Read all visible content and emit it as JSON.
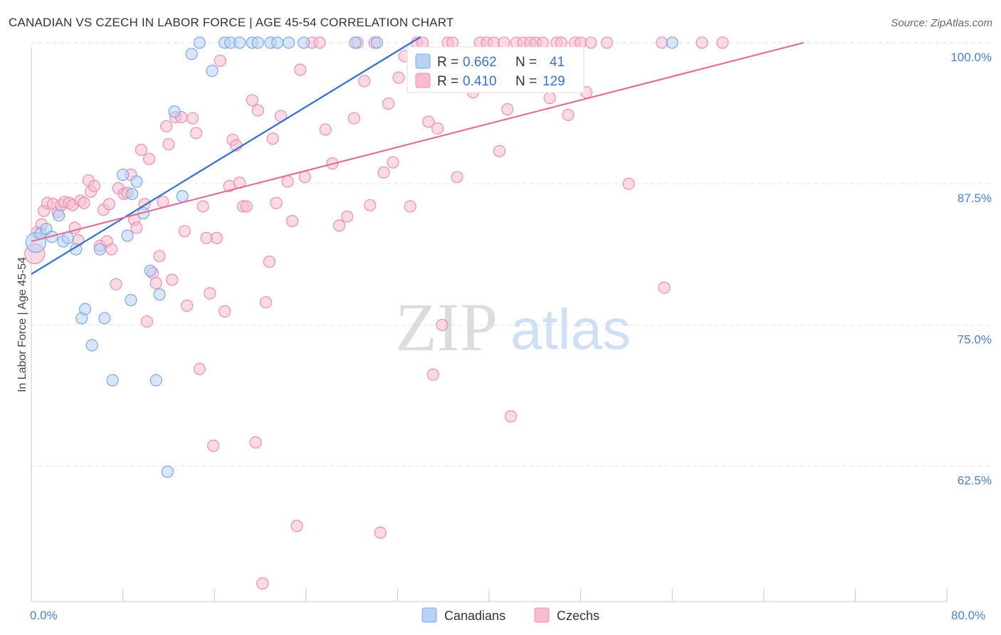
{
  "title": "CANADIAN VS CZECH IN LABOR FORCE | AGE 45-54 CORRELATION CHART",
  "source": "Source: ZipAtlas.com",
  "watermark": {
    "zip": "ZIP",
    "atlas": "atlas"
  },
  "colors": {
    "canadians_fill": "#b7d2f5",
    "canadians_stroke": "#7aa8e6",
    "canadians_line": "#2f6fd0",
    "czechs_fill": "#f7bcd0",
    "czechs_stroke": "#ec8fb0",
    "czechs_line": "#e07099",
    "value_text": "#3a72cc"
  },
  "legend": {
    "rows": [
      {
        "r_label": "R =",
        "r_value": "0.662",
        "n_label": "N =",
        "n_value": "41"
      },
      {
        "r_label": "R =",
        "r_value": "0.410",
        "n_label": "N =",
        "n_value": "129"
      }
    ]
  },
  "bottom_legend": [
    "Canadians",
    "Czechs"
  ],
  "chart_data": {
    "type": "scatter",
    "xlabel": "",
    "ylabel": "In Labor Force | Age 45-54",
    "xlim": [
      0,
      80
    ],
    "ylim": [
      50.5,
      100.5
    ],
    "x_tick_labels": [
      "0.0%",
      "80.0%"
    ],
    "y_ticks": [
      62.5,
      75.0,
      87.5,
      100.0
    ],
    "y_tick_labels": [
      "62.5%",
      "75.0%",
      "87.5%",
      "100.0%"
    ],
    "grid": true,
    "series": [
      {
        "name": "Canadians",
        "r": 0.662,
        "n": 41,
        "trend": {
          "x0": 0,
          "y0": 79.5,
          "x1": 34,
          "y1": 100.5
        },
        "points": [
          [
            0.4,
            82.3
          ],
          [
            0.8,
            83.1
          ],
          [
            1.3,
            83.5
          ],
          [
            1.8,
            82.8
          ],
          [
            2.4,
            84.7
          ],
          [
            2.8,
            82.4
          ],
          [
            3.2,
            82.7
          ],
          [
            3.9,
            81.7
          ],
          [
            4.4,
            75.6
          ],
          [
            4.7,
            76.4
          ],
          [
            5.3,
            73.2
          ],
          [
            6.0,
            81.7
          ],
          [
            6.4,
            75.6
          ],
          [
            7.1,
            70.1
          ],
          [
            8.0,
            88.3
          ],
          [
            8.4,
            82.9
          ],
          [
            8.7,
            77.2
          ],
          [
            8.8,
            86.6
          ],
          [
            9.2,
            87.7
          ],
          [
            9.8,
            84.9
          ],
          [
            10.4,
            79.8
          ],
          [
            10.9,
            70.1
          ],
          [
            11.2,
            77.7
          ],
          [
            11.9,
            62.0
          ],
          [
            12.5,
            93.9
          ],
          [
            13.2,
            86.4
          ],
          [
            14.0,
            99.0
          ],
          [
            14.7,
            100.0
          ],
          [
            15.8,
            97.5
          ],
          [
            16.9,
            100.0
          ],
          [
            17.4,
            100.0
          ],
          [
            18.2,
            100.0
          ],
          [
            19.3,
            100.0
          ],
          [
            19.8,
            100.0
          ],
          [
            20.9,
            100.0
          ],
          [
            21.5,
            100.0
          ],
          [
            22.5,
            100.0
          ],
          [
            23.8,
            100.0
          ],
          [
            28.3,
            100.0
          ],
          [
            30.2,
            100.0
          ],
          [
            56.0,
            100.0
          ]
        ]
      },
      {
        "name": "Czechs",
        "r": 0.41,
        "n": 129,
        "trend": {
          "x0": 0,
          "y0": 82.4,
          "x1": 67.5,
          "y1": 100.0
        },
        "points": [
          [
            0.3,
            81.3
          ],
          [
            0.5,
            83.2
          ],
          [
            0.9,
            83.9
          ],
          [
            1.1,
            85.1
          ],
          [
            1.4,
            85.8
          ],
          [
            1.9,
            85.7
          ],
          [
            2.3,
            85.0
          ],
          [
            2.6,
            85.6
          ],
          [
            2.9,
            85.9
          ],
          [
            3.3,
            85.8
          ],
          [
            3.6,
            85.6
          ],
          [
            3.8,
            83.6
          ],
          [
            4.1,
            82.5
          ],
          [
            4.3,
            86.0
          ],
          [
            4.6,
            85.8
          ],
          [
            5.0,
            87.8
          ],
          [
            5.2,
            86.8
          ],
          [
            5.5,
            87.3
          ],
          [
            6.0,
            82.0
          ],
          [
            6.3,
            85.2
          ],
          [
            6.6,
            82.4
          ],
          [
            6.8,
            85.7
          ],
          [
            7.0,
            81.7
          ],
          [
            7.4,
            78.6
          ],
          [
            7.6,
            87.1
          ],
          [
            8.1,
            86.6
          ],
          [
            8.4,
            86.7
          ],
          [
            8.7,
            88.3
          ],
          [
            9.0,
            84.3
          ],
          [
            9.2,
            83.6
          ],
          [
            9.6,
            90.5
          ],
          [
            9.9,
            85.7
          ],
          [
            10.1,
            75.3
          ],
          [
            10.3,
            89.7
          ],
          [
            10.6,
            79.6
          ],
          [
            10.9,
            78.7
          ],
          [
            11.2,
            81.1
          ],
          [
            11.5,
            85.9
          ],
          [
            11.8,
            92.6
          ],
          [
            12.0,
            91.0
          ],
          [
            12.3,
            79.0
          ],
          [
            12.6,
            93.4
          ],
          [
            13.1,
            93.4
          ],
          [
            13.4,
            83.3
          ],
          [
            13.6,
            76.7
          ],
          [
            14.1,
            93.3
          ],
          [
            14.4,
            92.0
          ],
          [
            14.7,
            71.1
          ],
          [
            15.0,
            85.5
          ],
          [
            15.3,
            82.7
          ],
          [
            15.6,
            77.8
          ],
          [
            15.9,
            64.3
          ],
          [
            16.2,
            82.7
          ],
          [
            16.5,
            98.4
          ],
          [
            16.9,
            76.2
          ],
          [
            17.3,
            87.3
          ],
          [
            17.6,
            91.4
          ],
          [
            17.9,
            90.9
          ],
          [
            18.2,
            87.6
          ],
          [
            18.5,
            85.5
          ],
          [
            18.8,
            85.5
          ],
          [
            19.3,
            94.9
          ],
          [
            19.6,
            64.6
          ],
          [
            19.8,
            94.0
          ],
          [
            20.2,
            52.1
          ],
          [
            20.5,
            77.0
          ],
          [
            20.8,
            80.6
          ],
          [
            21.1,
            91.5
          ],
          [
            21.4,
            85.8
          ],
          [
            21.8,
            93.5
          ],
          [
            22.4,
            87.7
          ],
          [
            22.8,
            84.2
          ],
          [
            23.2,
            57.2
          ],
          [
            23.5,
            97.6
          ],
          [
            23.9,
            88.1
          ],
          [
            24.5,
            100.0
          ],
          [
            25.2,
            100.0
          ],
          [
            25.7,
            92.3
          ],
          [
            26.3,
            89.3
          ],
          [
            26.9,
            83.8
          ],
          [
            27.6,
            84.6
          ],
          [
            28.2,
            93.3
          ],
          [
            28.5,
            100.0
          ],
          [
            29.1,
            96.6
          ],
          [
            29.6,
            85.6
          ],
          [
            30.0,
            100.0
          ],
          [
            30.5,
            56.6
          ],
          [
            30.8,
            88.5
          ],
          [
            31.2,
            94.6
          ],
          [
            31.6,
            89.4
          ],
          [
            32.1,
            96.9
          ],
          [
            32.6,
            98.8
          ],
          [
            33.1,
            85.5
          ],
          [
            33.7,
            100.0
          ],
          [
            34.2,
            100.0
          ],
          [
            34.7,
            93.0
          ],
          [
            35.1,
            70.6
          ],
          [
            35.5,
            92.4
          ],
          [
            35.9,
            75.0
          ],
          [
            36.4,
            100.0
          ],
          [
            36.8,
            100.0
          ],
          [
            37.2,
            88.1
          ],
          [
            37.6,
            98.5
          ],
          [
            38.0,
            97.1
          ],
          [
            38.6,
            95.6
          ],
          [
            39.2,
            100.0
          ],
          [
            39.8,
            100.0
          ],
          [
            40.4,
            100.0
          ],
          [
            40.9,
            90.4
          ],
          [
            41.3,
            100.0
          ],
          [
            41.6,
            94.1
          ],
          [
            41.9,
            66.9
          ],
          [
            42.4,
            100.0
          ],
          [
            43.0,
            100.0
          ],
          [
            43.6,
            100.0
          ],
          [
            44.1,
            100.0
          ],
          [
            44.7,
            100.0
          ],
          [
            45.3,
            95.1
          ],
          [
            45.9,
            100.0
          ],
          [
            46.3,
            100.0
          ],
          [
            46.9,
            93.6
          ],
          [
            47.5,
            100.0
          ],
          [
            48.0,
            100.0
          ],
          [
            48.5,
            95.6
          ],
          [
            48.9,
            100.0
          ],
          [
            50.3,
            100.0
          ],
          [
            52.2,
            87.5
          ],
          [
            55.3,
            78.3
          ],
          [
            55.1,
            100.0
          ],
          [
            58.6,
            100.0
          ],
          [
            60.4,
            100.0
          ]
        ]
      }
    ]
  }
}
